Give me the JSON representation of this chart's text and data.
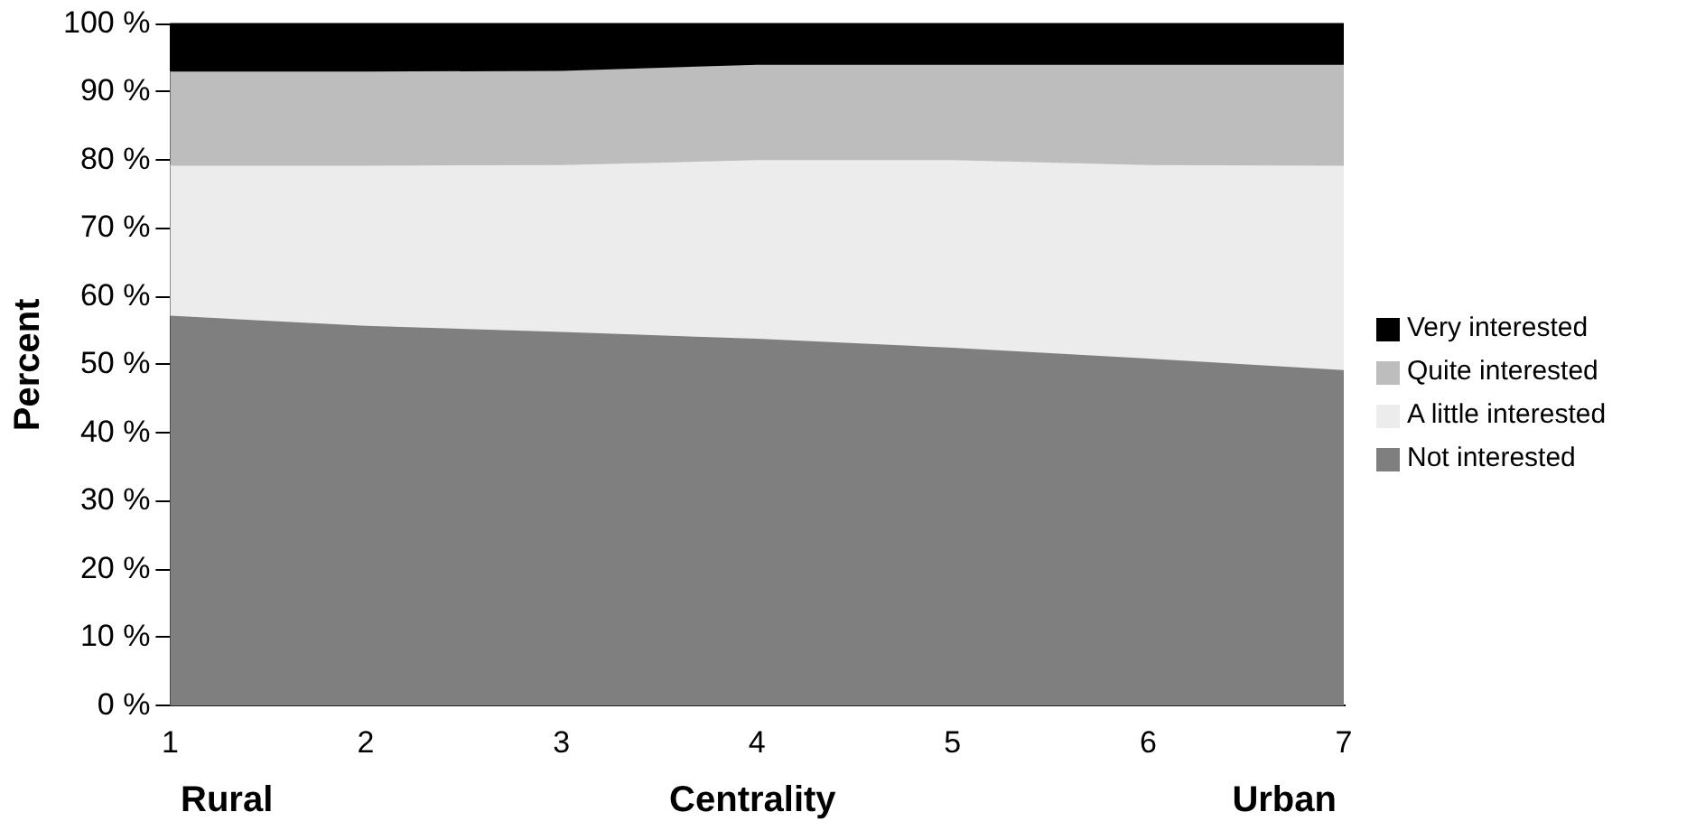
{
  "chart_data": {
    "type": "area",
    "stacked": true,
    "xlabel": "Centrality",
    "ylabel": "Percent",
    "x": [
      1,
      2,
      3,
      4,
      5,
      6,
      7
    ],
    "xlim": [
      1,
      7
    ],
    "xticks": [
      1,
      2,
      3,
      4,
      5,
      6,
      7
    ],
    "ylim": [
      0,
      100
    ],
    "yticks": [
      {
        "value": 0,
        "label": "0 %"
      },
      {
        "value": 10,
        "label": "10 %"
      },
      {
        "value": 20,
        "label": "20 %"
      },
      {
        "value": 30,
        "label": "30 %"
      },
      {
        "value": 40,
        "label": "40 %"
      },
      {
        "value": 50,
        "label": "50 %"
      },
      {
        "value": 60,
        "label": "60 %"
      },
      {
        "value": 70,
        "label": "70 %"
      },
      {
        "value": 80,
        "label": "80 %"
      },
      {
        "value": 90,
        "label": "90 %"
      },
      {
        "value": 100,
        "label": "100 %"
      }
    ],
    "series": [
      {
        "name": "Not interested",
        "color": "#7f7f7f",
        "values": [
          57.2,
          55.7,
          54.8,
          53.8,
          52.5,
          50.9,
          49.2
        ]
      },
      {
        "name": "A little interested",
        "color": "#ececec",
        "values": [
          22.0,
          23.5,
          24.5,
          26.2,
          27.5,
          28.4,
          30.0
        ]
      },
      {
        "name": "Quite interested",
        "color": "#bdbdbd",
        "values": [
          13.8,
          13.8,
          13.8,
          14.0,
          14.0,
          14.7,
          14.8
        ]
      },
      {
        "name": "Very interested",
        "color": "#000000",
        "values": [
          7.0,
          7.0,
          6.9,
          6.0,
          6.0,
          6.0,
          6.0
        ]
      }
    ],
    "annotations": [
      "Rural",
      "Urban"
    ],
    "grid": false,
    "legend": "right"
  }
}
